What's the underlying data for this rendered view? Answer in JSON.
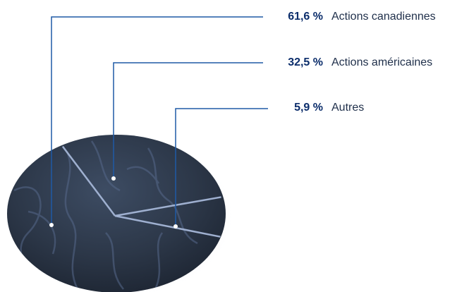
{
  "colors": {
    "leader_line": "#1f5aa6",
    "pie_dark": "#2a3442",
    "pie_mid": "#36455a",
    "slice_border": "#9fb0d0",
    "vein": "#57698a",
    "label_value": "#0b2d6b",
    "label_text": "#1f2f4a"
  },
  "chart_data": {
    "type": "pie",
    "title": "",
    "slices": [
      {
        "label": "Actions canadiennes",
        "value": 61.6,
        "value_label": "61,6 %"
      },
      {
        "label": "Actions américaines",
        "value": 32.5,
        "value_label": "32,5 %"
      },
      {
        "label": "Autres",
        "value": 5.9,
        "value_label": "5,9 %"
      }
    ],
    "legend_placement": "top-right"
  }
}
